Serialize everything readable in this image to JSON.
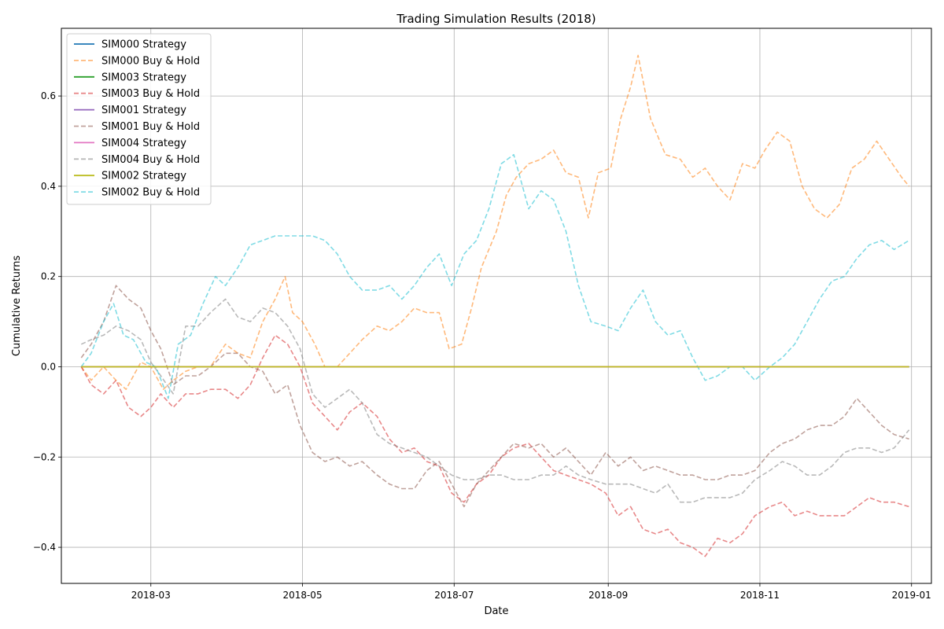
{
  "chart_data": {
    "type": "line",
    "title": "Trading Simulation Results (2018)",
    "xlabel": "Date",
    "ylabel": "Cumulative Returns",
    "xlim": [
      "2018-01-24",
      "2019-01-09"
    ],
    "ylim": [
      -0.48,
      0.75
    ],
    "x_ticks": [
      "2018-03",
      "2018-05",
      "2018-07",
      "2018-09",
      "2018-11",
      "2019-01"
    ],
    "y_ticks": [
      "−0.4",
      "−0.2",
      "0.0",
      "0.2",
      "0.4",
      "0.6"
    ],
    "grid": true,
    "legend_position": "top-left",
    "x_range": [
      "2018-02-01",
      "2018-12-31"
    ],
    "series": [
      {
        "name": "SIM000 Strategy",
        "color": "#1f77b4",
        "dash": false,
        "x": [
          "2018-02-01",
          "2018-12-31"
        ],
        "y": [
          0.0,
          0.0
        ]
      },
      {
        "name": "SIM000 Buy & Hold",
        "color": "#ff7f0e",
        "dash": true,
        "x": [
          "2018-02-01",
          "2018-02-05",
          "2018-02-10",
          "2018-02-15",
          "2018-02-19",
          "2018-02-25",
          "2018-03-01",
          "2018-03-06",
          "2018-03-10",
          "2018-03-15",
          "2018-03-20",
          "2018-03-25",
          "2018-03-31",
          "2018-04-05",
          "2018-04-10",
          "2018-04-15",
          "2018-04-20",
          "2018-04-24",
          "2018-04-27",
          "2018-05-01",
          "2018-05-06",
          "2018-05-10",
          "2018-05-15",
          "2018-05-20",
          "2018-05-25",
          "2018-05-31",
          "2018-06-05",
          "2018-06-10",
          "2018-06-15",
          "2018-06-20",
          "2018-06-25",
          "2018-06-29",
          "2018-07-04",
          "2018-07-08",
          "2018-07-12",
          "2018-07-18",
          "2018-07-22",
          "2018-07-26",
          "2018-07-31",
          "2018-08-05",
          "2018-08-10",
          "2018-08-15",
          "2018-08-20",
          "2018-08-24",
          "2018-08-28",
          "2018-09-02",
          "2018-09-06",
          "2018-09-10",
          "2018-09-13",
          "2018-09-18",
          "2018-09-24",
          "2018-09-30",
          "2018-10-05",
          "2018-10-10",
          "2018-10-15",
          "2018-10-20",
          "2018-10-25",
          "2018-10-30",
          "2018-11-03",
          "2018-11-08",
          "2018-11-13",
          "2018-11-18",
          "2018-11-23",
          "2018-11-28",
          "2018-12-03",
          "2018-12-08",
          "2018-12-13",
          "2018-12-18",
          "2018-12-23",
          "2018-12-28",
          "2018-12-31"
        ],
        "y": [
          0.0,
          -0.03,
          0.0,
          -0.03,
          -0.05,
          0.01,
          0.0,
          -0.05,
          -0.03,
          -0.01,
          0.0,
          0.0,
          0.05,
          0.03,
          0.02,
          0.1,
          0.15,
          0.2,
          0.12,
          0.1,
          0.05,
          0.0,
          0.0,
          0.03,
          0.06,
          0.09,
          0.08,
          0.1,
          0.13,
          0.12,
          0.12,
          0.04,
          0.05,
          0.13,
          0.22,
          0.3,
          0.38,
          0.42,
          0.45,
          0.46,
          0.48,
          0.43,
          0.42,
          0.33,
          0.43,
          0.44,
          0.55,
          0.62,
          0.69,
          0.55,
          0.47,
          0.46,
          0.42,
          0.44,
          0.4,
          0.37,
          0.45,
          0.44,
          0.48,
          0.52,
          0.5,
          0.4,
          0.35,
          0.33,
          0.36,
          0.44,
          0.46,
          0.5,
          0.46,
          0.42,
          0.4
        ]
      },
      {
        "name": "SIM003 Strategy",
        "color": "#2ca02c",
        "dash": false,
        "x": [
          "2018-02-01",
          "2018-12-31"
        ],
        "y": [
          0.0,
          0.0
        ]
      },
      {
        "name": "SIM003 Buy & Hold",
        "color": "#d62728",
        "dash": true,
        "x": [
          "2018-02-01",
          "2018-02-05",
          "2018-02-10",
          "2018-02-15",
          "2018-02-20",
          "2018-02-25",
          "2018-03-01",
          "2018-03-05",
          "2018-03-10",
          "2018-03-15",
          "2018-03-20",
          "2018-03-25",
          "2018-03-31",
          "2018-04-05",
          "2018-04-10",
          "2018-04-15",
          "2018-04-20",
          "2018-04-25",
          "2018-04-30",
          "2018-05-05",
          "2018-05-10",
          "2018-05-15",
          "2018-05-20",
          "2018-05-25",
          "2018-05-31",
          "2018-06-05",
          "2018-06-10",
          "2018-06-15",
          "2018-06-20",
          "2018-06-25",
          "2018-06-30",
          "2018-07-05",
          "2018-07-10",
          "2018-07-15",
          "2018-07-20",
          "2018-07-25",
          "2018-07-31",
          "2018-08-05",
          "2018-08-10",
          "2018-08-15",
          "2018-08-20",
          "2018-08-25",
          "2018-08-31",
          "2018-09-05",
          "2018-09-10",
          "2018-09-15",
          "2018-09-20",
          "2018-09-25",
          "2018-09-30",
          "2018-10-05",
          "2018-10-10",
          "2018-10-15",
          "2018-10-20",
          "2018-10-25",
          "2018-10-30",
          "2018-11-05",
          "2018-11-10",
          "2018-11-15",
          "2018-11-20",
          "2018-11-25",
          "2018-11-30",
          "2018-12-05",
          "2018-12-10",
          "2018-12-15",
          "2018-12-20",
          "2018-12-25",
          "2018-12-31"
        ],
        "y": [
          0.0,
          -0.04,
          -0.06,
          -0.03,
          -0.09,
          -0.11,
          -0.09,
          -0.06,
          -0.09,
          -0.06,
          -0.06,
          -0.05,
          -0.05,
          -0.07,
          -0.04,
          0.02,
          0.07,
          0.05,
          0.0,
          -0.08,
          -0.11,
          -0.14,
          -0.1,
          -0.08,
          -0.11,
          -0.16,
          -0.19,
          -0.18,
          -0.21,
          -0.22,
          -0.28,
          -0.3,
          -0.26,
          -0.24,
          -0.2,
          -0.18,
          -0.17,
          -0.2,
          -0.23,
          -0.24,
          -0.25,
          -0.26,
          -0.28,
          -0.33,
          -0.31,
          -0.36,
          -0.37,
          -0.36,
          -0.39,
          -0.4,
          -0.42,
          -0.38,
          -0.39,
          -0.37,
          -0.33,
          -0.31,
          -0.3,
          -0.33,
          -0.32,
          -0.33,
          -0.33,
          -0.33,
          -0.31,
          -0.29,
          -0.3,
          -0.3,
          -0.31
        ]
      },
      {
        "name": "SIM001 Strategy",
        "color": "#9467bd",
        "dash": false,
        "x": [
          "2018-02-01",
          "2018-12-31"
        ],
        "y": [
          0.0,
          0.0
        ]
      },
      {
        "name": "SIM001 Buy & Hold",
        "color": "#8c564b",
        "dash": true,
        "x": [
          "2018-02-01",
          "2018-02-05",
          "2018-02-10",
          "2018-02-15",
          "2018-02-20",
          "2018-02-25",
          "2018-03-01",
          "2018-03-05",
          "2018-03-10",
          "2018-03-15",
          "2018-03-20",
          "2018-03-25",
          "2018-03-31",
          "2018-04-05",
          "2018-04-10",
          "2018-04-15",
          "2018-04-20",
          "2018-04-25",
          "2018-04-30",
          "2018-05-05",
          "2018-05-10",
          "2018-05-15",
          "2018-05-20",
          "2018-05-25",
          "2018-05-31",
          "2018-06-05",
          "2018-06-10",
          "2018-06-15",
          "2018-06-20",
          "2018-06-25",
          "2018-06-30",
          "2018-07-05",
          "2018-07-10",
          "2018-07-15",
          "2018-07-20",
          "2018-07-25",
          "2018-07-31",
          "2018-08-05",
          "2018-08-10",
          "2018-08-15",
          "2018-08-20",
          "2018-08-25",
          "2018-08-31",
          "2018-09-05",
          "2018-09-10",
          "2018-09-15",
          "2018-09-20",
          "2018-09-25",
          "2018-09-30",
          "2018-10-05",
          "2018-10-10",
          "2018-10-15",
          "2018-10-20",
          "2018-10-25",
          "2018-10-30",
          "2018-11-05",
          "2018-11-10",
          "2018-11-15",
          "2018-11-20",
          "2018-11-25",
          "2018-11-30",
          "2018-12-05",
          "2018-12-10",
          "2018-12-15",
          "2018-12-20",
          "2018-12-25",
          "2018-12-31"
        ],
        "y": [
          0.02,
          0.05,
          0.1,
          0.18,
          0.15,
          0.13,
          0.08,
          0.04,
          -0.04,
          -0.02,
          -0.02,
          0.0,
          0.03,
          0.03,
          0.0,
          -0.01,
          -0.06,
          -0.04,
          -0.13,
          -0.19,
          -0.21,
          -0.2,
          -0.22,
          -0.21,
          -0.24,
          -0.26,
          -0.27,
          -0.27,
          -0.23,
          -0.21,
          -0.26,
          -0.31,
          -0.26,
          -0.23,
          -0.2,
          -0.17,
          -0.18,
          -0.17,
          -0.2,
          -0.18,
          -0.21,
          -0.24,
          -0.19,
          -0.22,
          -0.2,
          -0.23,
          -0.22,
          -0.23,
          -0.24,
          -0.24,
          -0.25,
          -0.25,
          -0.24,
          -0.24,
          -0.23,
          -0.19,
          -0.17,
          -0.16,
          -0.14,
          -0.13,
          -0.13,
          -0.11,
          -0.07,
          -0.1,
          -0.13,
          -0.15,
          -0.16
        ]
      },
      {
        "name": "SIM004 Strategy",
        "color": "#e377c2",
        "dash": false,
        "x": [
          "2018-02-01",
          "2018-12-31"
        ],
        "y": [
          0.0,
          0.0
        ]
      },
      {
        "name": "SIM004 Buy & Hold",
        "color": "#7f7f7f",
        "dash": true,
        "x": [
          "2018-02-01",
          "2018-02-05",
          "2018-02-10",
          "2018-02-15",
          "2018-02-20",
          "2018-02-25",
          "2018-03-01",
          "2018-03-05",
          "2018-03-10",
          "2018-03-15",
          "2018-03-20",
          "2018-03-25",
          "2018-03-31",
          "2018-04-05",
          "2018-04-10",
          "2018-04-15",
          "2018-04-20",
          "2018-04-25",
          "2018-04-30",
          "2018-05-05",
          "2018-05-10",
          "2018-05-15",
          "2018-05-20",
          "2018-05-25",
          "2018-05-31",
          "2018-06-05",
          "2018-06-10",
          "2018-06-15",
          "2018-06-20",
          "2018-06-25",
          "2018-06-30",
          "2018-07-05",
          "2018-07-10",
          "2018-07-15",
          "2018-07-20",
          "2018-07-25",
          "2018-07-31",
          "2018-08-05",
          "2018-08-10",
          "2018-08-15",
          "2018-08-20",
          "2018-08-25",
          "2018-08-31",
          "2018-09-05",
          "2018-09-10",
          "2018-09-15",
          "2018-09-20",
          "2018-09-25",
          "2018-09-30",
          "2018-10-05",
          "2018-10-10",
          "2018-10-15",
          "2018-10-20",
          "2018-10-25",
          "2018-10-30",
          "2018-11-05",
          "2018-11-10",
          "2018-11-15",
          "2018-11-20",
          "2018-11-25",
          "2018-11-30",
          "2018-12-05",
          "2018-12-10",
          "2018-12-15",
          "2018-12-20",
          "2018-12-25",
          "2018-12-31"
        ],
        "y": [
          0.05,
          0.06,
          0.07,
          0.09,
          0.08,
          0.06,
          0.01,
          -0.02,
          -0.06,
          0.09,
          0.09,
          0.12,
          0.15,
          0.11,
          0.1,
          0.13,
          0.12,
          0.09,
          0.04,
          -0.06,
          -0.09,
          -0.07,
          -0.05,
          -0.08,
          -0.15,
          -0.17,
          -0.18,
          -0.19,
          -0.2,
          -0.22,
          -0.24,
          -0.25,
          -0.25,
          -0.24,
          -0.24,
          -0.25,
          -0.25,
          -0.24,
          -0.24,
          -0.22,
          -0.24,
          -0.25,
          -0.26,
          -0.26,
          -0.26,
          -0.27,
          -0.28,
          -0.26,
          -0.3,
          -0.3,
          -0.29,
          -0.29,
          -0.29,
          -0.28,
          -0.25,
          -0.23,
          -0.21,
          -0.22,
          -0.24,
          -0.24,
          -0.22,
          -0.19,
          -0.18,
          -0.18,
          -0.19,
          -0.18,
          -0.14
        ]
      },
      {
        "name": "SIM002 Strategy",
        "color": "#bcbd22",
        "dash": false,
        "x": [
          "2018-02-01",
          "2018-12-31"
        ],
        "y": [
          0.0,
          0.0
        ]
      },
      {
        "name": "SIM002 Buy & Hold",
        "color": "#17becf",
        "dash": true,
        "x": [
          "2018-02-01",
          "2018-02-05",
          "2018-02-10",
          "2018-02-14",
          "2018-02-18",
          "2018-02-22",
          "2018-02-27",
          "2018-03-03",
          "2018-03-08",
          "2018-03-12",
          "2018-03-17",
          "2018-03-22",
          "2018-03-27",
          "2018-03-31",
          "2018-04-05",
          "2018-04-10",
          "2018-04-15",
          "2018-04-20",
          "2018-04-25",
          "2018-04-30",
          "2018-05-05",
          "2018-05-10",
          "2018-05-15",
          "2018-05-20",
          "2018-05-25",
          "2018-05-31",
          "2018-06-05",
          "2018-06-10",
          "2018-06-15",
          "2018-06-20",
          "2018-06-25",
          "2018-06-30",
          "2018-07-05",
          "2018-07-10",
          "2018-07-15",
          "2018-07-20",
          "2018-07-25",
          "2018-07-31",
          "2018-08-05",
          "2018-08-10",
          "2018-08-15",
          "2018-08-20",
          "2018-08-25",
          "2018-08-31",
          "2018-09-05",
          "2018-09-10",
          "2018-09-15",
          "2018-09-20",
          "2018-09-25",
          "2018-09-30",
          "2018-10-05",
          "2018-10-10",
          "2018-10-15",
          "2018-10-20",
          "2018-10-25",
          "2018-10-30",
          "2018-11-05",
          "2018-11-10",
          "2018-11-15",
          "2018-11-20",
          "2018-11-25",
          "2018-11-30",
          "2018-12-05",
          "2018-12-10",
          "2018-12-15",
          "2018-12-20",
          "2018-12-25",
          "2018-12-31"
        ],
        "y": [
          0.0,
          0.03,
          0.1,
          0.14,
          0.07,
          0.06,
          0.01,
          0.0,
          -0.07,
          0.05,
          0.07,
          0.14,
          0.2,
          0.18,
          0.22,
          0.27,
          0.28,
          0.29,
          0.29,
          0.29,
          0.29,
          0.28,
          0.25,
          0.2,
          0.17,
          0.17,
          0.18,
          0.15,
          0.18,
          0.22,
          0.25,
          0.18,
          0.25,
          0.28,
          0.35,
          0.45,
          0.47,
          0.35,
          0.39,
          0.37,
          0.3,
          0.18,
          0.1,
          0.09,
          0.08,
          0.13,
          0.17,
          0.1,
          0.07,
          0.08,
          0.02,
          -0.03,
          -0.02,
          0.0,
          0.0,
          -0.03,
          0.0,
          0.02,
          0.05,
          0.1,
          0.15,
          0.19,
          0.2,
          0.24,
          0.27,
          0.28,
          0.26,
          0.28
        ]
      }
    ]
  }
}
